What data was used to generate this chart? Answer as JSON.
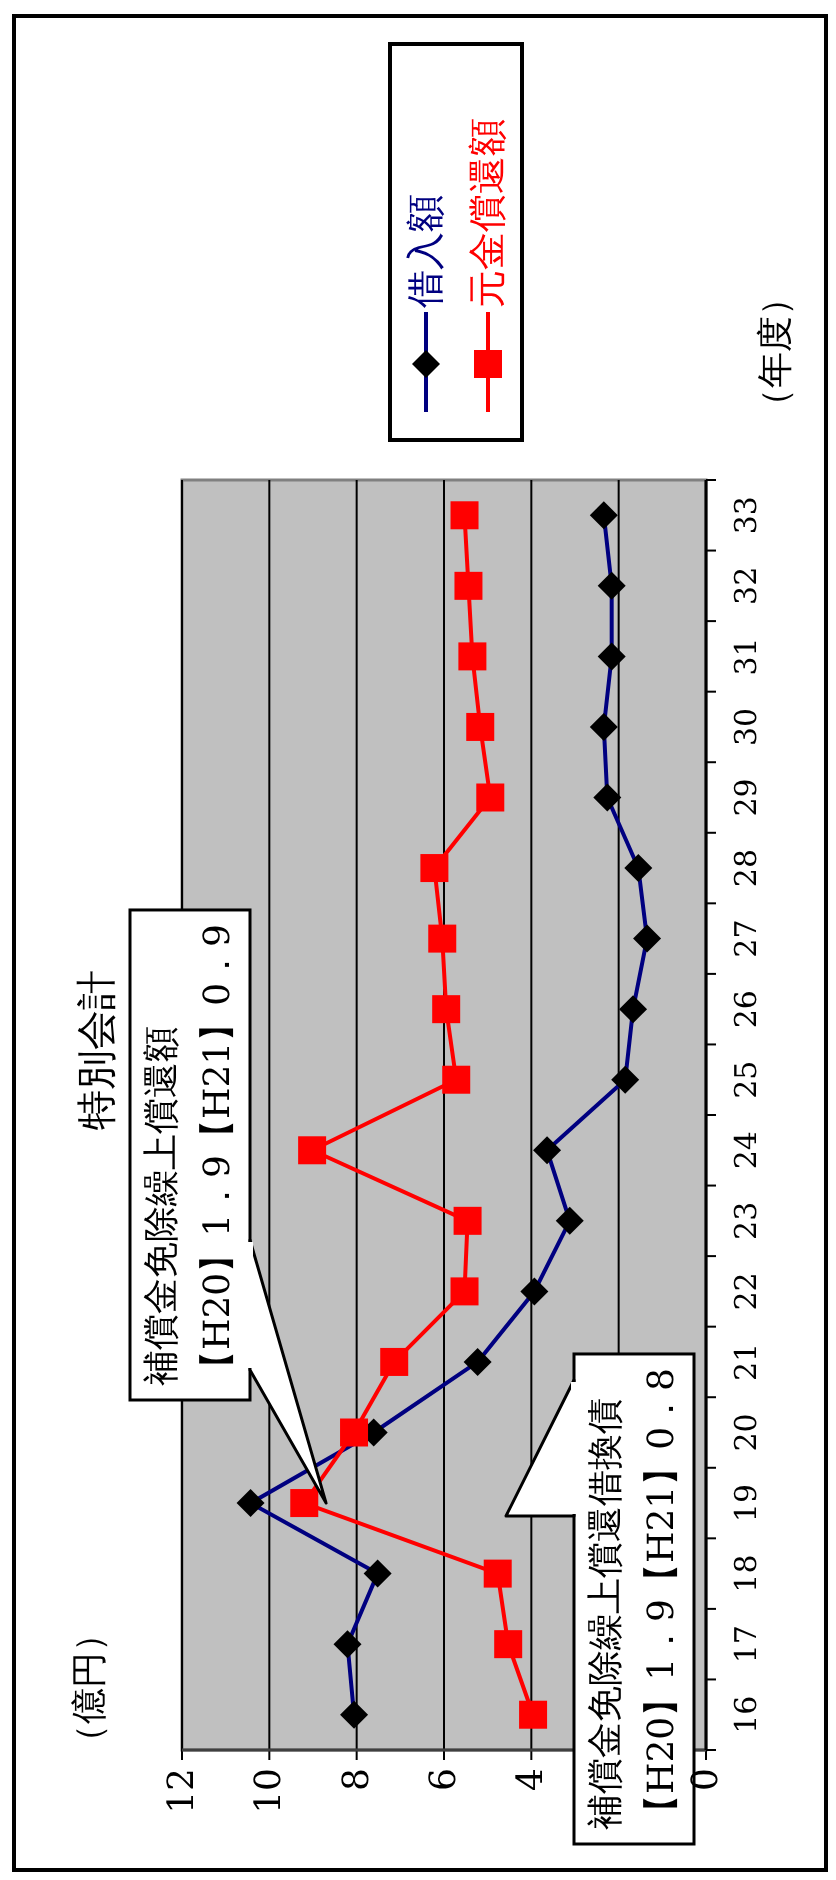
{
  "chart_data": {
    "type": "line",
    "orientation": "horizontal",
    "title": "特別会計",
    "ylabel": "（年度）",
    "categories": [
      "33",
      "32",
      "31",
      "30",
      "29",
      "28",
      "27",
      "26",
      "25",
      "24",
      "23",
      "22",
      "21",
      "20",
      "19",
      "18",
      "17",
      "16"
    ],
    "series": [
      {
        "name": "借入額",
        "color": "#000080",
        "marker": "diamond",
        "values": [
          2.34,
          2.16,
          2.16,
          2.34,
          2.26,
          1.55,
          1.35,
          1.67,
          1.85,
          3.64,
          3.12,
          3.93,
          5.23,
          7.61,
          10.43,
          7.52,
          8.21,
          8.06
        ]
      },
      {
        "name": "元金償還額",
        "color": "#ff0000",
        "marker": "square",
        "values": [
          5.53,
          5.44,
          5.35,
          5.17,
          4.94,
          6.22,
          6.04,
          5.95,
          5.72,
          9.02,
          5.46,
          5.53,
          7.14,
          8.06,
          9.2,
          4.77,
          4.53,
          3.96
        ]
      }
    ],
    "xlim": [
      12,
      0
    ],
    "xticks": [
      12,
      10,
      8,
      6,
      4,
      {
        "value": 2,
        "label": null
      },
      0
    ],
    "grid": "x",
    "legend": "right",
    "line_style": "solid",
    "annotations": [
      "（億円）",
      {
        "text": "補償金免除繰上償還額【H20】1．9【H21】0．9",
        "x": 8.7,
        "y": "19"
      },
      "補償金免除繰上償還借換債【H20】1．9【H21】0．8"
    ]
  }
}
